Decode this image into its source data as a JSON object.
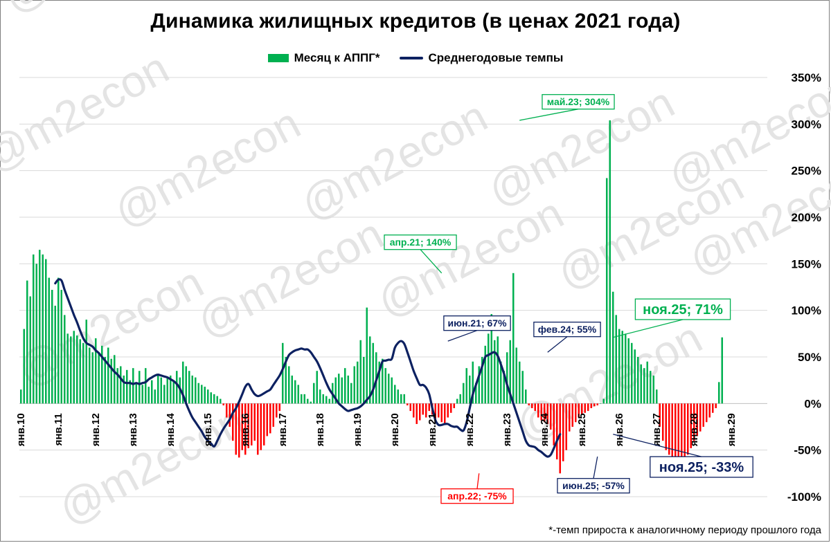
{
  "title": "Динамика жилищных кредитов (в ценах 2021 года)",
  "watermark": "@m2econ",
  "legend": [
    {
      "label": "Месяц к АППГ*",
      "color": "#00b050"
    },
    {
      "label": "Среднегодовые темпы",
      "color": "#0d2161"
    }
  ],
  "footnote": "*-темп прироста к аналогичному периоду прошлого года",
  "chart_data": {
    "type": "bar",
    "y_unit": "%",
    "ylim": [
      -100,
      350
    ],
    "yticks": [
      -100,
      -50,
      0,
      50,
      100,
      150,
      200,
      250,
      300,
      350
    ],
    "ytick_labels": [
      "-100%",
      "-50%",
      "0%",
      "50%",
      "100%",
      "150%",
      "200%",
      "250%",
      "300%",
      "350%"
    ],
    "grid": true,
    "x_start": "янв.10",
    "x_end": "дек.29",
    "xtick_labels": [
      "янв.10",
      "янв.11",
      "янв.12",
      "янв.13",
      "янв.14",
      "янв.15",
      "янв.16",
      "янв.17",
      "янв.18",
      "янв.19",
      "янв.20",
      "янв.21",
      "янв.22",
      "янв.23",
      "янв.24",
      "янв.25",
      "янв.26",
      "янв.27",
      "янв.28",
      "янв.29"
    ],
    "colors": {
      "positive": "#00b050",
      "negative": "#ff0000",
      "line": "#0d2161"
    },
    "series": [
      {
        "name": "Месяц к АППГ*",
        "type": "bar",
        "values": [
          15,
          80,
          132,
          115,
          160,
          150,
          165,
          160,
          155,
          135,
          122,
          105,
          135,
          122,
          95,
          75,
          72,
          78,
          73,
          69,
          65,
          90,
          60,
          55,
          70,
          55,
          62,
          50,
          60,
          48,
          52,
          38,
          40,
          30,
          36,
          25,
          38,
          22,
          35,
          20,
          38,
          18,
          25,
          15,
          30,
          28,
          20,
          28,
          30,
          25,
          35,
          28,
          45,
          40,
          35,
          30,
          28,
          22,
          20,
          18,
          15,
          12,
          10,
          8,
          5,
          -2,
          -15,
          -25,
          -40,
          -55,
          -58,
          -50,
          -55,
          -48,
          -45,
          -40,
          -55,
          -50,
          -45,
          -35,
          -32,
          -25,
          -15,
          -8,
          65,
          50,
          40,
          30,
          25,
          20,
          10,
          10,
          5,
          2,
          22,
          35,
          15,
          10,
          8,
          5,
          22,
          28,
          32,
          28,
          38,
          30,
          22,
          40,
          45,
          68,
          50,
          103,
          72,
          65,
          55,
          45,
          48,
          38,
          32,
          28,
          20,
          15,
          10,
          10,
          -2,
          -8,
          -15,
          -22,
          -18,
          -12,
          -15,
          -8,
          -12,
          -18,
          -15,
          -20,
          -22,
          -15,
          -10,
          -5,
          5,
          10,
          22,
          38,
          30,
          45,
          22,
          40,
          50,
          62,
          75,
          96,
          68,
          72,
          45,
          35,
          55,
          68,
          140,
          60,
          45,
          35,
          15,
          -2,
          -5,
          -8,
          -15,
          -18,
          -20,
          -22,
          -28,
          -45,
          -60,
          -75,
          -62,
          -50,
          -30,
          -25,
          -20,
          -15,
          -12,
          -10,
          -8,
          -5,
          -3,
          -2,
          0,
          5,
          242,
          304,
          120,
          95,
          80,
          78,
          75,
          70,
          65,
          58,
          50,
          42,
          38,
          45,
          35,
          30,
          15,
          -25,
          -40,
          -50,
          -55,
          -60,
          -66,
          -62,
          -65,
          -58,
          -55,
          -48,
          -40,
          -35,
          -30,
          -25,
          -20,
          -15,
          -10,
          -5,
          23,
          71
        ],
        "annotations": [
          {
            "x": "апр.21",
            "value": 140,
            "label": "апр.21; 140%"
          },
          {
            "x": "апр.22",
            "value": -75,
            "label": "апр.22; -75%"
          },
          {
            "x": "май.23",
            "value": 304,
            "label": "май.23; 304%"
          },
          {
            "x": "ноя.25",
            "value": 71,
            "label": "ноя.25; 71%"
          }
        ]
      },
      {
        "name": "Среднегодовые темпы",
        "type": "line",
        "start": "дек.10",
        "values": [
          129,
          133,
          132,
          122,
          113,
          104,
          95,
          87,
          78,
          70,
          65,
          63,
          61,
          57,
          54,
          50,
          46,
          42,
          38,
          34,
          31,
          27,
          23,
          22,
          22,
          21,
          22,
          21,
          22,
          23,
          26,
          28,
          30,
          31,
          30,
          29,
          28,
          26,
          24,
          21,
          16,
          9,
          0,
          -8,
          -15,
          -20,
          -25,
          -30,
          -36,
          -40,
          -43,
          -46,
          -40,
          -33,
          -27,
          -22,
          -17,
          -10,
          -5,
          2,
          10,
          18,
          21,
          15,
          10,
          8,
          9,
          11,
          13,
          15,
          20,
          25,
          30,
          37,
          45,
          52,
          55,
          57,
          58,
          59,
          58,
          58,
          55,
          50,
          45,
          38,
          30,
          22,
          15,
          10,
          5,
          0,
          -3,
          -6,
          -8,
          -7,
          -6,
          -5,
          -3,
          0,
          4,
          8,
          15,
          25,
          35,
          45,
          46,
          47,
          48,
          60,
          65,
          67,
          64,
          55,
          45,
          35,
          27,
          20,
          20,
          17,
          10,
          -5,
          -18,
          -23,
          -23,
          -22,
          -22,
          -24,
          -25,
          -25,
          -28,
          -29,
          -20,
          -5,
          10,
          20,
          30,
          40,
          50,
          52,
          54,
          55,
          51,
          42,
          32,
          20,
          10,
          0,
          -10,
          -20,
          -30,
          -40,
          -45,
          -46,
          -47,
          -50,
          -52,
          -55,
          -57,
          -55,
          -48,
          -40,
          -33
        ]
      }
    ],
    "line_annotations": [
      {
        "x": "июн.21",
        "value": 67,
        "label": "июн.21; 67%"
      },
      {
        "x": "фев.24",
        "value": 55,
        "label": "фев.24; 55%"
      },
      {
        "x": "июн.25",
        "value": -57,
        "label": "июн.25; -57%"
      },
      {
        "x": "ноя.25",
        "value": -33,
        "label": "ноя.25; -33%"
      }
    ]
  }
}
